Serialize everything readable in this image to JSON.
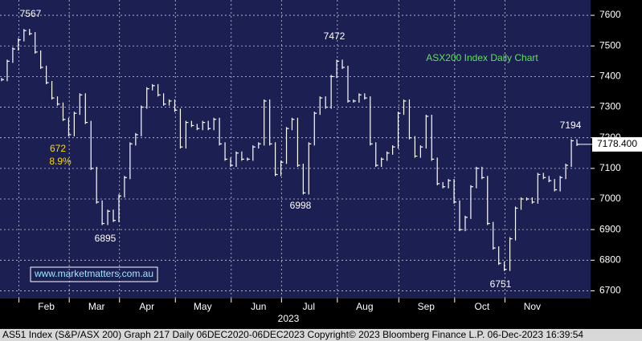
{
  "chart_data": {
    "type": "bar",
    "title": "ASX200 Index Daily Chart",
    "categories": [
      null,
      null,
      null,
      null,
      null,
      null,
      null,
      null,
      "Feb",
      null,
      null,
      null,
      null,
      null,
      null,
      null,
      null,
      "Mar",
      null,
      null,
      null,
      null,
      null,
      null,
      null,
      null,
      "Apr",
      null,
      null,
      null,
      null,
      null,
      null,
      null,
      null,
      null,
      "May",
      null,
      null,
      null,
      null,
      null,
      null,
      null,
      null,
      null,
      "Jun",
      null,
      null,
      null,
      null,
      null,
      null,
      null,
      null,
      "Jul",
      null,
      null,
      null,
      null,
      null,
      null,
      null,
      null,
      null,
      "Aug",
      null,
      null,
      null,
      null,
      null,
      null,
      null,
      null,
      null,
      null,
      "Sep",
      null,
      null,
      null,
      null,
      null,
      null,
      null,
      null,
      null,
      "Oct",
      null,
      null,
      null,
      null,
      null,
      null,
      null,
      null,
      "Nov",
      null,
      null,
      null,
      null,
      null,
      null,
      null,
      null
    ],
    "values": [
      7390,
      7450,
      7490,
      7520,
      7550,
      7540,
      7480,
      7430,
      7380,
      7330,
      7310,
      7260,
      7210,
      7280,
      7340,
      7250,
      7100,
      6990,
      6920,
      6960,
      6930,
      7010,
      7070,
      7180,
      7210,
      7300,
      7360,
      7370,
      7340,
      7310,
      7320,
      7290,
      7170,
      7250,
      7240,
      7230,
      7250,
      7230,
      7260,
      7180,
      7130,
      7110,
      7150,
      7130,
      7130,
      7170,
      7180,
      7320,
      7180,
      7080,
      7120,
      7230,
      7260,
      7110,
      7020,
      7180,
      7280,
      7330,
      7300,
      7400,
      7450,
      7430,
      7320,
      7320,
      7340,
      7330,
      7180,
      7110,
      7130,
      7150,
      7170,
      7280,
      7320,
      7200,
      7140,
      7170,
      7270,
      7130,
      7050,
      7040,
      7060,
      6990,
      6900,
      6940,
      7040,
      7100,
      7070,
      6920,
      6840,
      6790,
      6770,
      6870,
      6970,
      7000,
      7000,
      6990,
      7080,
      7070,
      7060,
      7030,
      7070,
      7110,
      7190,
      7178.4
    ],
    "color": "#ffffff",
    "x_label": "2023",
    "ylim": [
      6675,
      7650
    ],
    "yticks": [
      6700,
      6800,
      6900,
      7000,
      7100,
      7200,
      7300,
      7400,
      7500,
      7600
    ],
    "grid": true,
    "last_price": {
      "value": 7178.4,
      "label": "7178.400"
    },
    "annotations": [
      "7567",
      "7472",
      "6895",
      "6998",
      "6751",
      "7194",
      "672",
      "8.9%",
      "www.marketmatters.com.au"
    ],
    "footer": "AS51 Index (S&P/ASX 200) Graph 217  Daily 06DEC2020-06DEC2023  Copyright© 2023 Bloomberg Finance L.P.   06-Dec-2023 16:39:54"
  }
}
